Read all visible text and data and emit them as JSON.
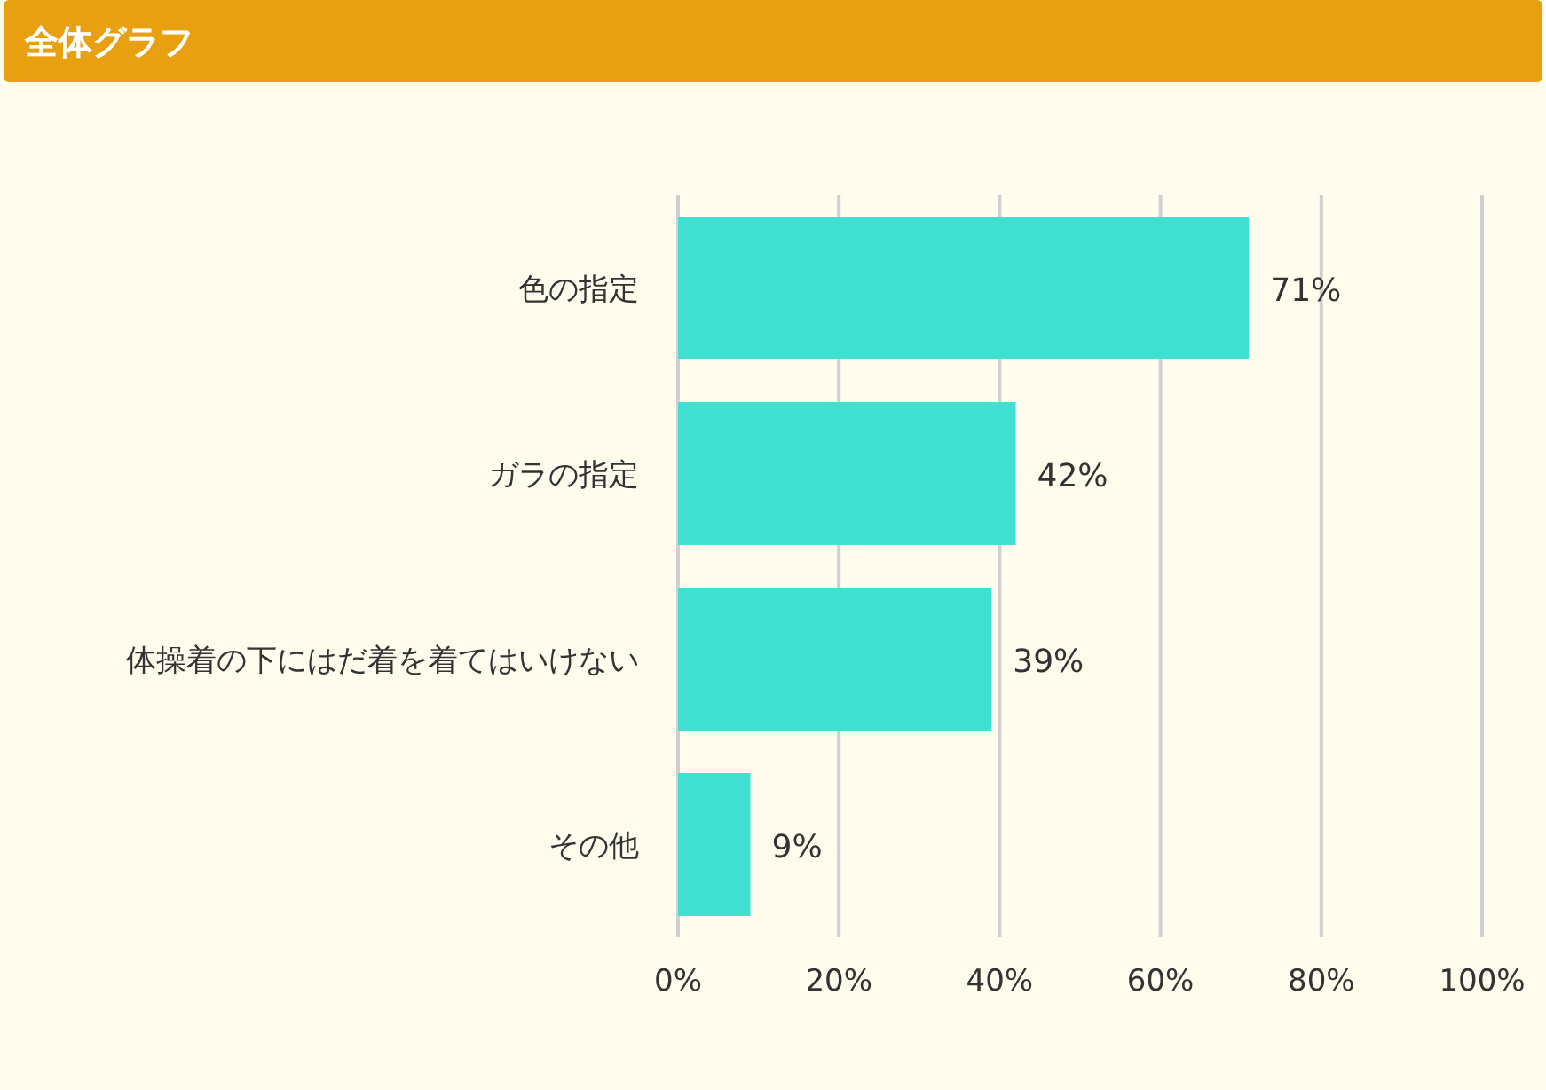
{
  "chart_data": {
    "type": "bar",
    "orientation": "horizontal",
    "title": "全体グラフ",
    "categories": [
      "色の指定",
      "ガラの指定",
      "体操着の下にはだ着を着てはいけない",
      "その他"
    ],
    "values": [
      71,
      42,
      39,
      9
    ],
    "value_labels": [
      "71%",
      "42%",
      "39%",
      "9%"
    ],
    "color": "#40e0d0",
    "xlim": [
      0,
      100
    ],
    "xticks": [
      {
        "value": 0,
        "label": "0%"
      },
      {
        "value": 20,
        "label": "20%"
      },
      {
        "value": 40,
        "label": "40%"
      },
      {
        "value": 60,
        "label": "60%"
      },
      {
        "value": 80,
        "label": "80%"
      },
      {
        "value": 100,
        "label": "100%"
      }
    ],
    "grid": "x"
  }
}
